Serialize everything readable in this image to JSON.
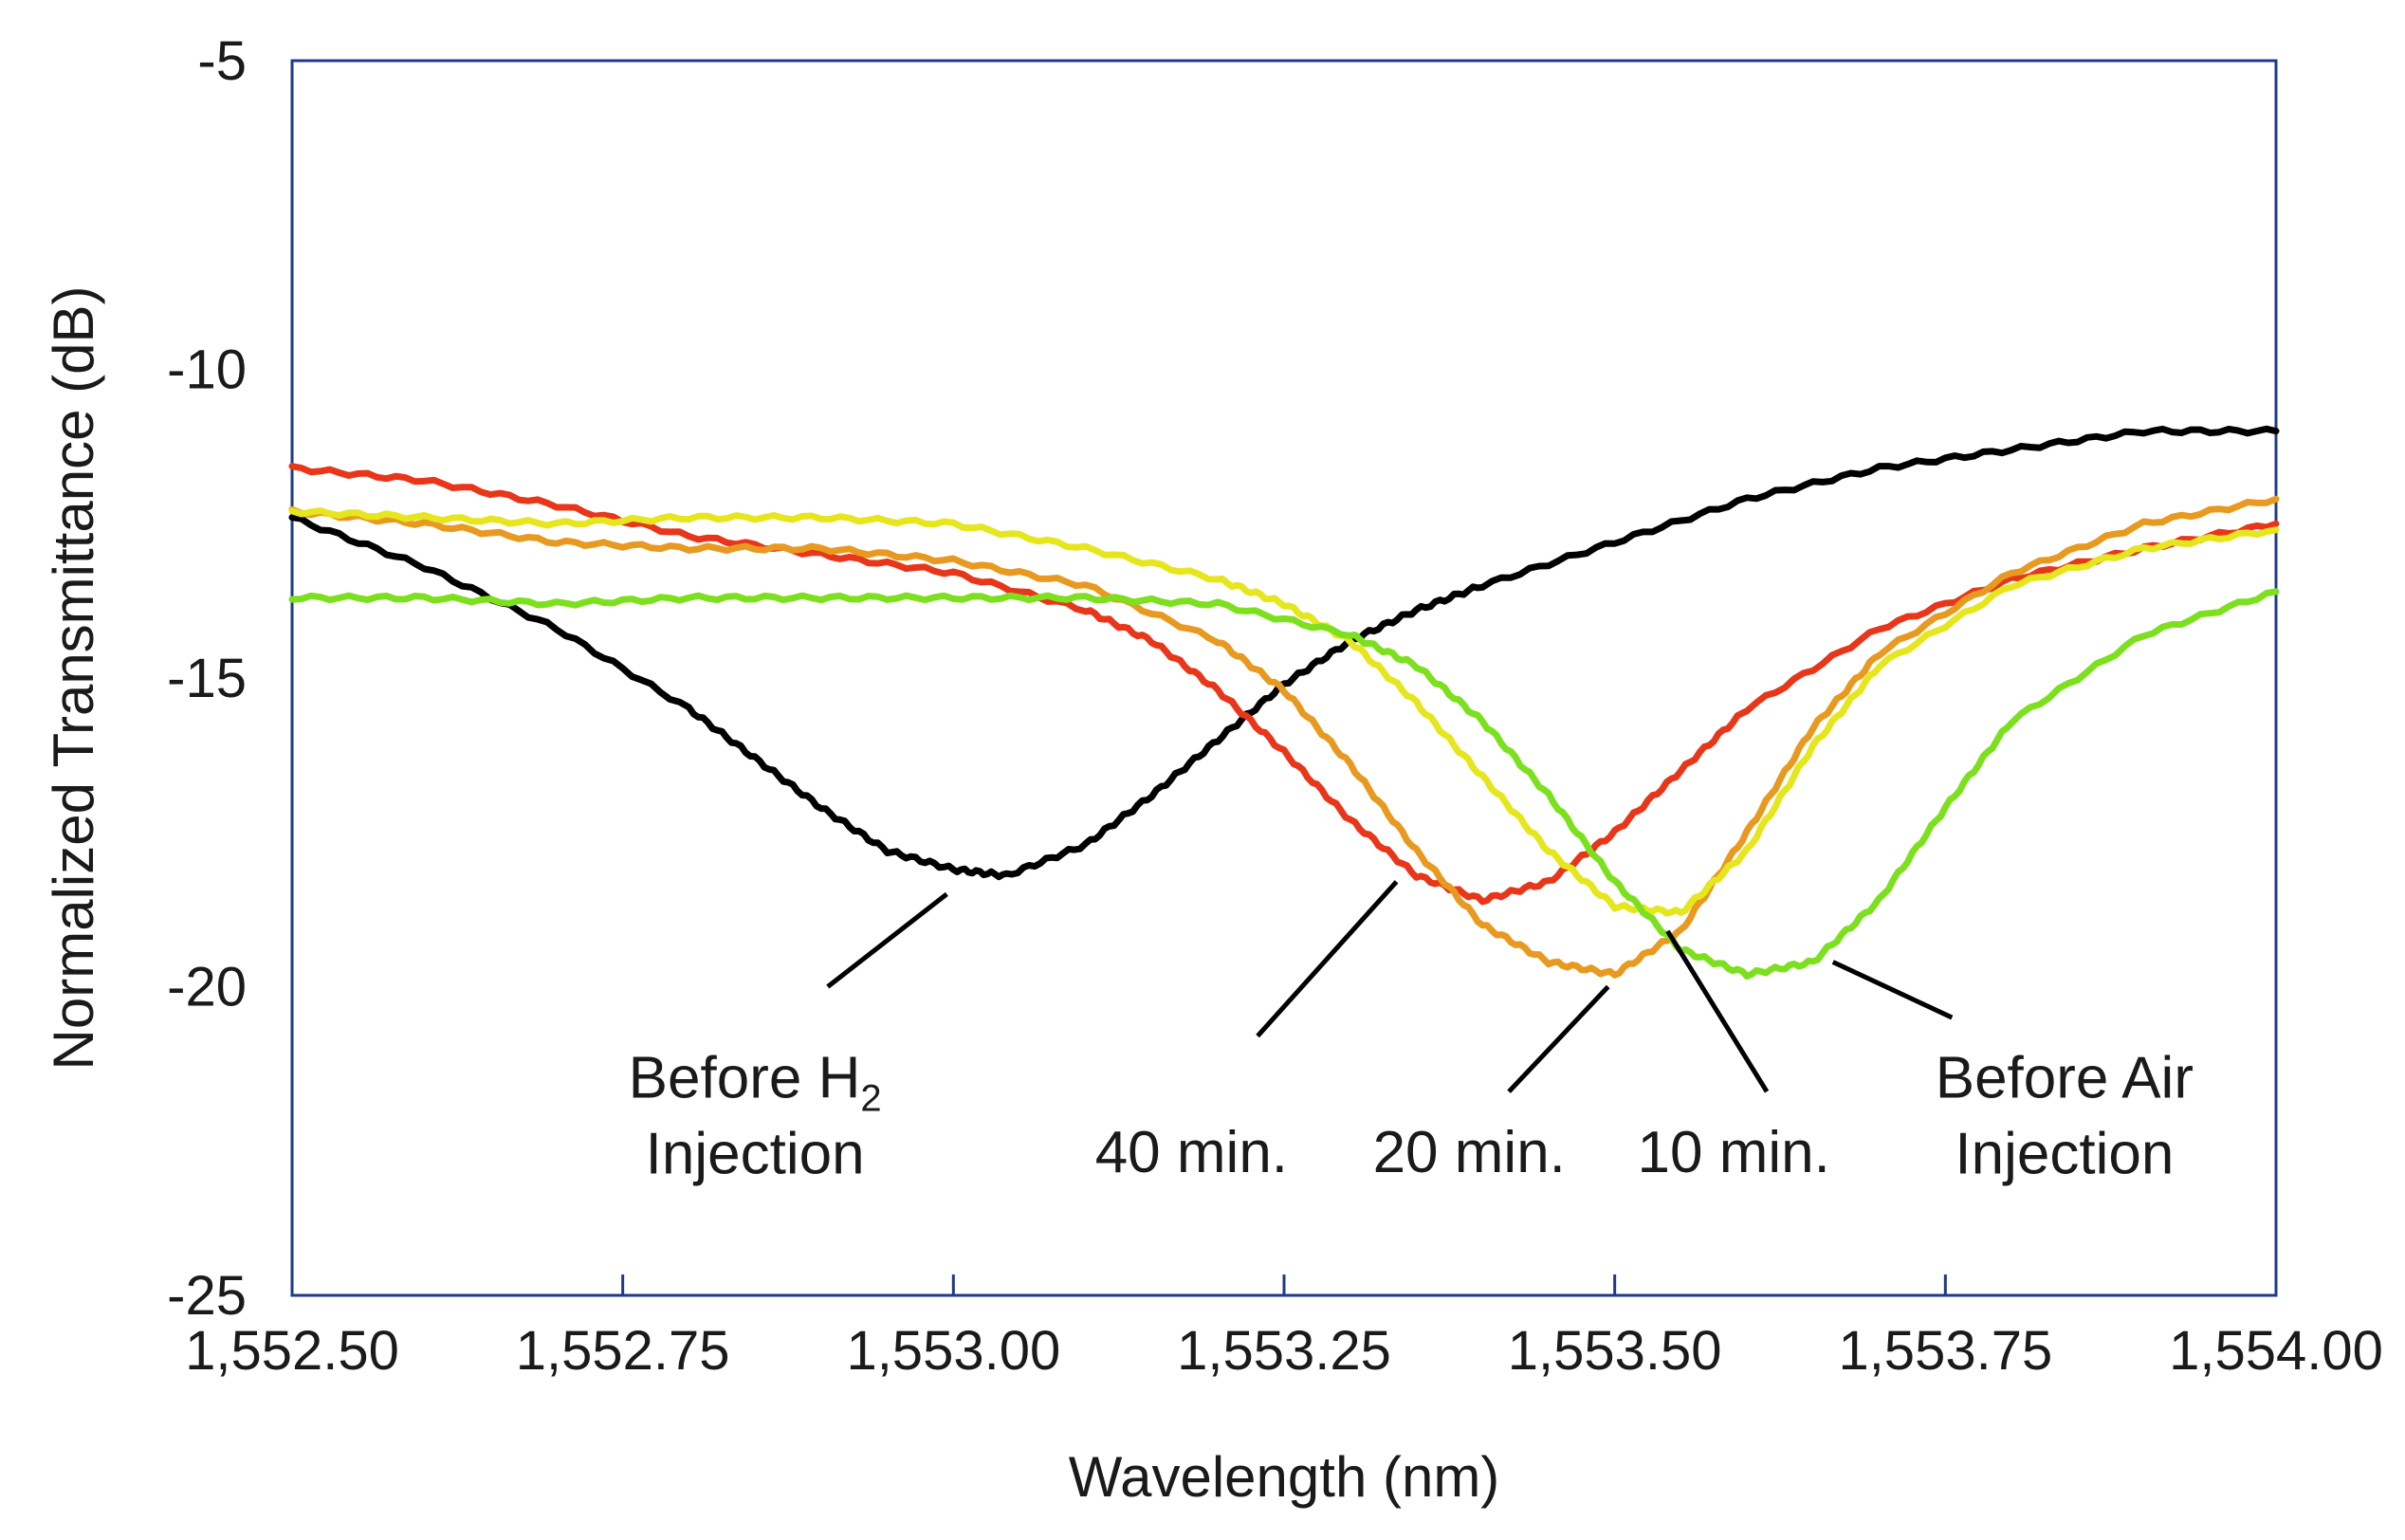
{
  "chart_data": {
    "type": "line",
    "title": "",
    "xlabel": "Wavelength (nm)",
    "ylabel": "Normalized Transmittance (dB)",
    "xlim": [
      1552.5,
      1554.0
    ],
    "ylim": [
      -25,
      -5
    ],
    "grid": false,
    "x_ticks": [
      1552.5,
      1552.75,
      1553.0,
      1553.25,
      1553.5,
      1553.75,
      1554.0
    ],
    "x_tick_labels": [
      "1,552.50",
      "1,552.75",
      "1,553.00",
      "1,553.25",
      "1,553.50",
      "1,553.75",
      "1,554.00"
    ],
    "y_ticks": [
      -5,
      -10,
      -15,
      -20,
      -25
    ],
    "y_tick_labels": [
      "-5",
      "-10",
      "-15",
      "-20",
      "-25"
    ],
    "series": [
      {
        "name": "Before H2 Injection",
        "color": "#000000",
        "x": [
          1552.5,
          1552.6,
          1552.7,
          1552.8,
          1552.85,
          1552.9,
          1552.95,
          1553.0,
          1553.04,
          1553.1,
          1553.15,
          1553.2,
          1553.25,
          1553.3,
          1553.35,
          1553.4,
          1553.5,
          1553.6,
          1553.7,
          1553.8,
          1553.9,
          1554.0
        ],
        "y": [
          -12.4,
          -13.2,
          -14.2,
          -15.5,
          -16.3,
          -17.1,
          -17.8,
          -18.1,
          -18.2,
          -17.7,
          -16.9,
          -16.0,
          -15.1,
          -14.4,
          -13.9,
          -13.5,
          -12.8,
          -12.1,
          -11.6,
          -11.3,
          -11.0,
          -11.0
        ]
      },
      {
        "name": "40 min.",
        "color": "#e8361a",
        "x": [
          1552.5,
          1552.6,
          1552.7,
          1552.8,
          1552.9,
          1553.0,
          1553.1,
          1553.15,
          1553.2,
          1553.25,
          1553.3,
          1553.35,
          1553.4,
          1553.45,
          1553.5,
          1553.55,
          1553.6,
          1553.7,
          1553.8,
          1553.9,
          1554.0
        ],
        "y": [
          -11.6,
          -11.8,
          -12.2,
          -12.7,
          -13.0,
          -13.3,
          -13.9,
          -14.4,
          -15.2,
          -16.2,
          -17.3,
          -18.2,
          -18.6,
          -18.3,
          -17.5,
          -16.5,
          -15.5,
          -14.2,
          -13.4,
          -12.9,
          -12.5
        ]
      },
      {
        "name": "20 min.",
        "color": "#e89a20",
        "x": [
          1552.5,
          1552.6,
          1552.7,
          1552.8,
          1552.9,
          1553.0,
          1553.1,
          1553.2,
          1553.25,
          1553.3,
          1553.35,
          1553.4,
          1553.45,
          1553.5,
          1553.55,
          1553.6,
          1553.65,
          1553.7,
          1553.8,
          1553.9,
          1554.0
        ],
        "y": [
          -12.3,
          -12.5,
          -12.8,
          -12.9,
          -12.9,
          -13.1,
          -13.5,
          -14.4,
          -15.2,
          -16.4,
          -17.8,
          -19.0,
          -19.6,
          -19.8,
          -19.1,
          -17.5,
          -15.8,
          -14.6,
          -13.3,
          -12.5,
          -12.1
        ]
      },
      {
        "name": "10 min.",
        "color": "#e6e61e",
        "x": [
          1552.5,
          1552.6,
          1552.7,
          1552.8,
          1552.9,
          1553.0,
          1553.1,
          1553.2,
          1553.25,
          1553.3,
          1553.35,
          1553.4,
          1553.45,
          1553.5,
          1553.55,
          1553.6,
          1553.65,
          1553.7,
          1553.8,
          1553.9,
          1554.0
        ],
        "y": [
          -12.3,
          -12.4,
          -12.5,
          -12.4,
          -12.4,
          -12.5,
          -12.9,
          -13.4,
          -13.8,
          -14.4,
          -15.4,
          -16.6,
          -17.8,
          -18.7,
          -18.8,
          -17.8,
          -16.1,
          -14.8,
          -13.5,
          -12.9,
          -12.6
        ]
      },
      {
        "name": "Before Air Injection",
        "color": "#7ce01e",
        "x": [
          1552.5,
          1552.6,
          1552.7,
          1552.8,
          1552.9,
          1553.0,
          1553.1,
          1553.2,
          1553.3,
          1553.35,
          1553.4,
          1553.45,
          1553.5,
          1553.55,
          1553.6,
          1553.65,
          1553.7,
          1553.75,
          1553.8,
          1553.9,
          1554.0
        ],
        "y": [
          -13.7,
          -13.7,
          -13.8,
          -13.7,
          -13.7,
          -13.7,
          -13.7,
          -13.8,
          -14.3,
          -14.8,
          -15.7,
          -16.9,
          -18.3,
          -19.4,
          -19.8,
          -19.6,
          -18.6,
          -17.1,
          -15.7,
          -14.3,
          -13.6
        ]
      }
    ],
    "annotations": [
      {
        "name": "annotation-before-h2",
        "lines": [
          "Before H",
          "Injection"
        ],
        "subscript": "2",
        "text_at": [
          1552.85,
          -21.8
        ],
        "pointer_from": [
          1552.905,
          -20.0
        ],
        "pointer_to": [
          1552.995,
          -18.5
        ]
      },
      {
        "name": "annotation-40-min",
        "lines": [
          "40 min."
        ],
        "subscript": "",
        "text_at": [
          1553.18,
          -23.0
        ],
        "pointer_from": [
          1553.23,
          -20.8
        ],
        "pointer_to": [
          1553.335,
          -18.3
        ]
      },
      {
        "name": "annotation-20-min",
        "lines": [
          "20 min."
        ],
        "subscript": "",
        "text_at": [
          1553.39,
          -23.0
        ],
        "pointer_from": [
          1553.42,
          -21.7
        ],
        "pointer_to": [
          1553.495,
          -20.0
        ]
      },
      {
        "name": "annotation-10-min",
        "lines": [
          "10 min."
        ],
        "subscript": "",
        "text_at": [
          1553.59,
          -23.0
        ],
        "pointer_from": [
          1553.615,
          -21.7
        ],
        "pointer_to": [
          1553.54,
          -19.1
        ]
      },
      {
        "name": "annotation-before-air",
        "lines": [
          "Before Air",
          "Injection"
        ],
        "subscript": "",
        "text_at": [
          1553.84,
          -21.8
        ],
        "pointer_from": [
          1553.755,
          -20.5
        ],
        "pointer_to": [
          1553.665,
          -19.6
        ]
      }
    ]
  }
}
